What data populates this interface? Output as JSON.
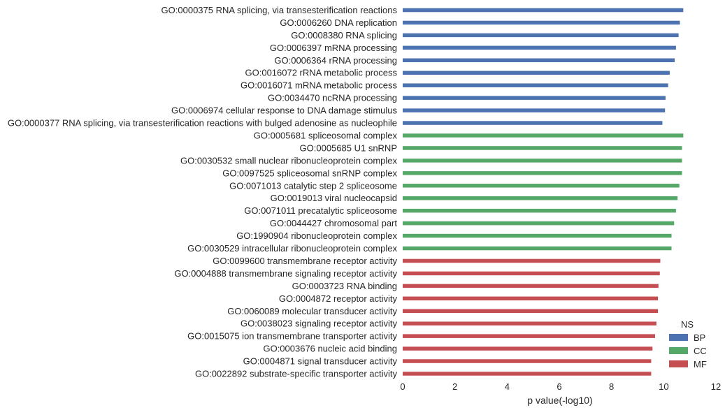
{
  "chart_data": {
    "type": "bar",
    "orientation": "horizontal",
    "xlabel": "p value(-log10)",
    "ylabel": "",
    "xlim": [
      0,
      12
    ],
    "xticks": [
      0,
      2,
      4,
      6,
      8,
      10,
      12
    ],
    "grid": false,
    "legend": {
      "title": "NS",
      "placement": "bottom-right",
      "entries": [
        {
          "name": "BP",
          "color": "#4c72b0"
        },
        {
          "name": "CC",
          "color": "#55a868"
        },
        {
          "name": "MF",
          "color": "#c44e52"
        }
      ]
    },
    "bars": [
      {
        "label": "GO:0000375 RNA splicing, via transesterification reactions",
        "value": 10.75,
        "group": "BP"
      },
      {
        "label": "GO:0006260 DNA replication",
        "value": 10.62,
        "group": "BP"
      },
      {
        "label": "GO:0008380 RNA splicing",
        "value": 10.57,
        "group": "BP"
      },
      {
        "label": "GO:0006397 mRNA processing",
        "value": 10.47,
        "group": "BP"
      },
      {
        "label": "GO:0006364 rRNA processing",
        "value": 10.42,
        "group": "BP"
      },
      {
        "label": "GO:0016072 rRNA metabolic process",
        "value": 10.23,
        "group": "BP"
      },
      {
        "label": "GO:0016071 mRNA metabolic process",
        "value": 10.17,
        "group": "BP"
      },
      {
        "label": "GO:0034470 ncRNA processing",
        "value": 10.07,
        "group": "BP"
      },
      {
        "label": "GO:0006974 cellular response to DNA damage stimulus",
        "value": 10.05,
        "group": "BP"
      },
      {
        "label": "GO:0000377 RNA splicing, via transesterification reactions with bulged adenosine as nucleophile",
        "value": 9.95,
        "group": "BP"
      },
      {
        "label": "GO:0005681 spliceosomal complex",
        "value": 10.75,
        "group": "CC"
      },
      {
        "label": "GO:0005685 U1 snRNP",
        "value": 10.7,
        "group": "CC"
      },
      {
        "label": "GO:0030532 small nuclear ribonucleoprotein complex",
        "value": 10.7,
        "group": "CC"
      },
      {
        "label": "GO:0097525 spliceosomal snRNP complex",
        "value": 10.7,
        "group": "CC"
      },
      {
        "label": "GO:0071013 catalytic step 2 spliceosome",
        "value": 10.6,
        "group": "CC"
      },
      {
        "label": "GO:0019013 viral nucleocapsid",
        "value": 10.53,
        "group": "CC"
      },
      {
        "label": "GO:0071011 precatalytic spliceosome",
        "value": 10.47,
        "group": "CC"
      },
      {
        "label": "GO:0044427 chromosomal part",
        "value": 10.4,
        "group": "CC"
      },
      {
        "label": "GO:1990904 ribonucleoprotein complex",
        "value": 10.3,
        "group": "CC"
      },
      {
        "label": "GO:0030529 intracellular ribonucleoprotein complex",
        "value": 10.3,
        "group": "CC"
      },
      {
        "label": "GO:0099600 transmembrane receptor activity",
        "value": 9.87,
        "group": "MF"
      },
      {
        "label": "GO:0004888 transmembrane signaling receptor activity",
        "value": 9.85,
        "group": "MF"
      },
      {
        "label": "GO:0003723 RNA binding",
        "value": 9.8,
        "group": "MF"
      },
      {
        "label": "GO:0004872 receptor activity",
        "value": 9.78,
        "group": "MF"
      },
      {
        "label": "GO:0060089 molecular transducer activity",
        "value": 9.78,
        "group": "MF"
      },
      {
        "label": "GO:0038023 signaling receptor activity",
        "value": 9.72,
        "group": "MF"
      },
      {
        "label": "GO:0015075 ion transmembrane transporter activity",
        "value": 9.67,
        "group": "MF"
      },
      {
        "label": "GO:0003676 nucleic acid binding",
        "value": 9.57,
        "group": "MF"
      },
      {
        "label": "GO:0004871 signal transducer activity",
        "value": 9.52,
        "group": "MF"
      },
      {
        "label": "GO:0022892 substrate-specific transporter activity",
        "value": 9.52,
        "group": "MF"
      }
    ]
  }
}
